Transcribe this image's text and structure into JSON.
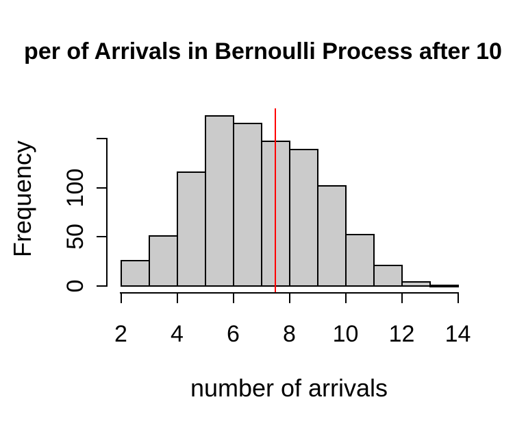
{
  "chart_data": {
    "type": "bar",
    "subtype": "histogram",
    "title_visible": "per of Arrivals in Bernoulli Process after 10",
    "xlabel": "number of arrivals",
    "ylabel": "Frequency",
    "bin_start": 2,
    "bin_width": 1,
    "categories": [
      "2-3",
      "3-4",
      "4-5",
      "5-6",
      "6-7",
      "7-8",
      "8-9",
      "9-10",
      "10-11",
      "11-12",
      "12-13",
      "13-14"
    ],
    "counts": [
      26,
      51,
      116,
      173,
      165,
      147,
      139,
      102,
      52,
      21,
      4,
      1
    ],
    "x_ticks": [
      2,
      4,
      6,
      8,
      10,
      12,
      14
    ],
    "y_ticks": [
      {
        "value": 0,
        "label": "0"
      },
      {
        "value": 50,
        "label": "50"
      },
      {
        "value": 100,
        "label": "100"
      },
      {
        "value": 150,
        "label": ""
      }
    ],
    "xlim": [
      2,
      14
    ],
    "ylim": [
      0,
      150
    ],
    "grid": false,
    "legend": null,
    "vline": {
      "x": 7.5,
      "color": "#FF0000"
    },
    "colors": {
      "bar_fill": "#CBCBCB",
      "bar_border": "#000000",
      "axis": "#000000",
      "text": "#000000",
      "background": "#FFFFFF"
    }
  }
}
